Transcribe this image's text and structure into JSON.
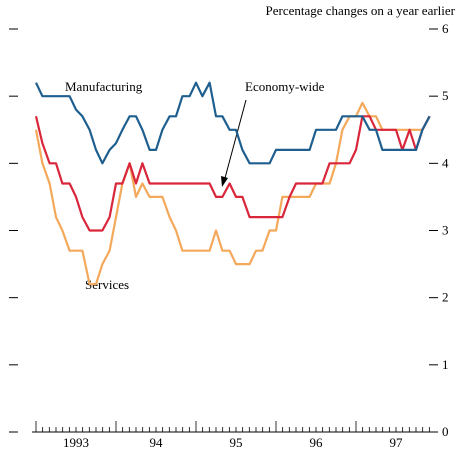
{
  "chart_data": {
    "type": "line",
    "subtitle": "Percentage changes on a year earlier",
    "x": [
      1993.0,
      1993.08,
      1993.17,
      1993.25,
      1993.33,
      1993.42,
      1993.5,
      1993.58,
      1993.67,
      1993.75,
      1993.83,
      1993.92,
      1994.0,
      1994.08,
      1994.17,
      1994.25,
      1994.33,
      1994.42,
      1994.5,
      1994.58,
      1994.67,
      1994.75,
      1994.83,
      1994.92,
      1995.0,
      1995.08,
      1995.17,
      1995.25,
      1995.33,
      1995.42,
      1995.5,
      1995.58,
      1995.67,
      1995.75,
      1995.83,
      1995.92,
      1996.0,
      1996.08,
      1996.17,
      1996.25,
      1996.33,
      1996.42,
      1996.5,
      1996.58,
      1996.67,
      1996.75,
      1996.83,
      1996.92,
      1997.0,
      1997.08,
      1997.17,
      1997.25,
      1997.33,
      1997.42,
      1997.5,
      1997.58,
      1997.67,
      1997.75,
      1997.83,
      1997.92
    ],
    "series": [
      {
        "name": "Manufacturing",
        "color": "#1f5f8f",
        "values": [
          5.2,
          5.0,
          5.0,
          5.0,
          5.0,
          5.0,
          4.8,
          4.7,
          4.5,
          4.2,
          4.0,
          4.2,
          4.3,
          4.5,
          4.7,
          4.7,
          4.5,
          4.2,
          4.2,
          4.5,
          4.7,
          4.7,
          5.0,
          5.0,
          5.2,
          5.0,
          5.2,
          4.7,
          4.7,
          4.5,
          4.5,
          4.2,
          4.0,
          4.0,
          4.0,
          4.0,
          4.2,
          4.2,
          4.2,
          4.2,
          4.2,
          4.2,
          4.5,
          4.5,
          4.5,
          4.5,
          4.7,
          4.7,
          4.7,
          4.7,
          4.5,
          4.5,
          4.2,
          4.2,
          4.2,
          4.2,
          4.2,
          4.2,
          4.5,
          4.7
        ]
      },
      {
        "name": "Economy-wide",
        "color": "#d9263b",
        "values": [
          4.7,
          4.3,
          4.0,
          4.0,
          3.7,
          3.7,
          3.5,
          3.2,
          3.0,
          3.0,
          3.0,
          3.2,
          3.7,
          3.7,
          4.0,
          3.7,
          4.0,
          3.7,
          3.7,
          3.7,
          3.7,
          3.7,
          3.7,
          3.7,
          3.7,
          3.7,
          3.7,
          3.5,
          3.5,
          3.7,
          3.5,
          3.5,
          3.2,
          3.2,
          3.2,
          3.2,
          3.2,
          3.2,
          3.5,
          3.7,
          3.7,
          3.7,
          3.7,
          3.7,
          4.0,
          4.0,
          4.0,
          4.0,
          4.2,
          4.7,
          4.7,
          4.5,
          4.5,
          4.5,
          4.5,
          4.2,
          4.5,
          4.2,
          4.5,
          4.7
        ]
      },
      {
        "name": "Services",
        "color": "#f4a85a",
        "values": [
          4.5,
          4.0,
          3.7,
          3.2,
          3.0,
          2.7,
          2.7,
          2.7,
          2.2,
          2.2,
          2.5,
          2.7,
          3.2,
          3.7,
          4.0,
          3.5,
          3.7,
          3.5,
          3.5,
          3.5,
          3.2,
          3.0,
          2.7,
          2.7,
          2.7,
          2.7,
          2.7,
          3.0,
          2.7,
          2.7,
          2.5,
          2.5,
          2.5,
          2.7,
          2.7,
          3.0,
          3.0,
          3.5,
          3.5,
          3.5,
          3.5,
          3.5,
          3.7,
          3.7,
          3.7,
          4.0,
          4.5,
          4.7,
          4.7,
          4.9,
          4.7,
          4.7,
          4.5,
          4.5,
          4.5,
          4.5,
          4.5,
          4.5,
          4.5,
          4.7
        ]
      }
    ],
    "xlim": [
      1992.95,
      1997.95
    ],
    "xticks": [
      {
        "value": 1993.5,
        "label": "1993"
      },
      {
        "value": 1994.5,
        "label": "94"
      },
      {
        "value": 1995.5,
        "label": "95"
      },
      {
        "value": 1996.5,
        "label": "96"
      },
      {
        "value": 1997.5,
        "label": "97"
      }
    ],
    "ylim": [
      0,
      6
    ],
    "yticks": [
      0,
      1,
      2,
      3,
      4,
      5,
      6
    ]
  }
}
